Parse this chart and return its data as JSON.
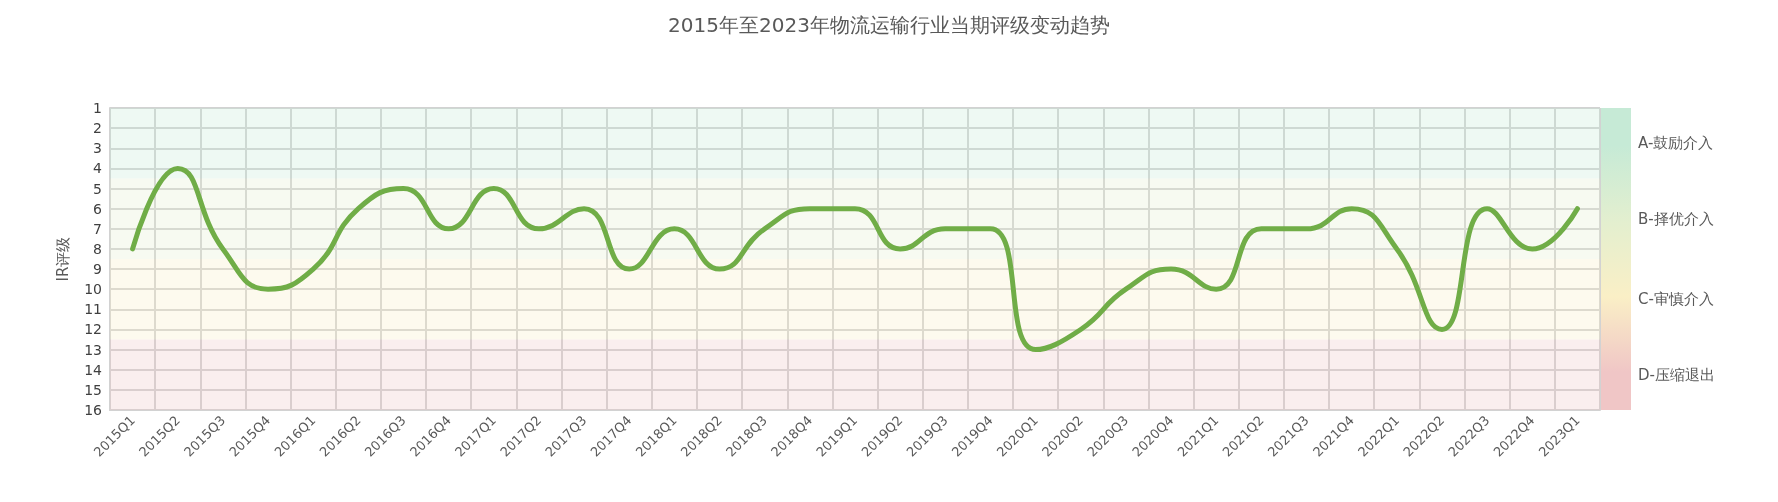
{
  "chart_data": {
    "type": "line",
    "title": "2015年至2023年物流运输行业当期评级变动趋势",
    "ylabel": "IR评级",
    "categories": [
      "2015Q1",
      "2015Q2",
      "2015Q3",
      "2015Q4",
      "2016Q1",
      "2016Q2",
      "2016Q3",
      "2016Q4",
      "2017Q1",
      "2017Q2",
      "2017Q3",
      "2017Q4",
      "2018Q1",
      "2018Q2",
      "2018Q3",
      "2018Q4",
      "2019Q1",
      "2019Q2",
      "2019Q3",
      "2019Q4",
      "2020Q1",
      "2020Q2",
      "2020Q3",
      "2020Q4",
      "2021Q1",
      "2021Q2",
      "2021Q3",
      "2021Q4",
      "2022Q1",
      "2022Q2",
      "2022Q3",
      "2022Q4",
      "2023Q1"
    ],
    "series": [
      {
        "color": "#70ad47",
        "values": [
          8,
          4,
          8,
          10,
          9,
          6,
          5,
          7,
          5,
          7,
          6,
          9,
          7,
          9,
          7,
          6,
          6,
          8,
          7,
          7,
          13,
          12,
          10,
          9,
          10,
          7,
          7,
          6,
          8,
          12,
          6,
          8,
          6
        ]
      }
    ],
    "ylim": [
      16,
      1
    ],
    "yticks": [
      1,
      2,
      3,
      4,
      5,
      6,
      7,
      8,
      9,
      10,
      11,
      12,
      13,
      14,
      15,
      16
    ],
    "bands": [
      {
        "axis": "y",
        "from": 1,
        "to": 4.5,
        "label": "A-鼓励介入",
        "color": "#c6ead6"
      },
      {
        "axis": "y",
        "from": 4.5,
        "to": 8.5,
        "label": "B-择优介入",
        "color": "#e3efcf"
      },
      {
        "axis": "y",
        "from": 8.5,
        "to": 12.5,
        "label": "C-审慎介入",
        "color": "#faefc6"
      },
      {
        "axis": "y",
        "from": 12.5,
        "to": 16,
        "label": "D-压缩退出",
        "color": "#f0c6c6"
      }
    ],
    "grid": true,
    "marker": "none",
    "line_style": "solid"
  }
}
